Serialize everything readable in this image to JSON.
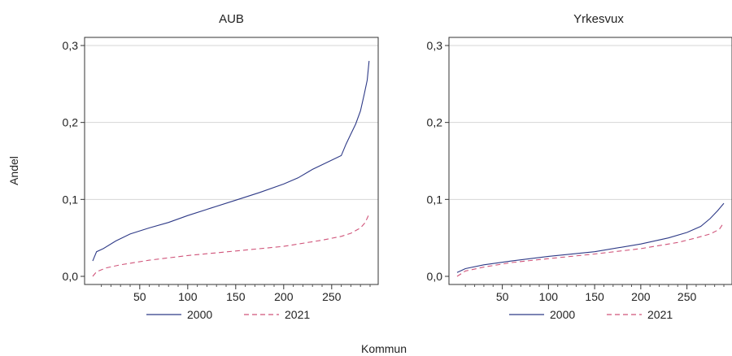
{
  "figure": {
    "ylabel": "Andel",
    "xlabel": "Kommun"
  },
  "chart_data": [
    {
      "type": "line",
      "title": "AUB",
      "ylim": [
        0,
        0.3
      ],
      "xlim": [
        1,
        290
      ],
      "xticks": [
        50,
        100,
        150,
        200,
        250
      ],
      "xtick_labels": [
        "50",
        "100",
        "150",
        "200",
        "250"
      ],
      "yticks": [
        0,
        0.1,
        0.2,
        0.3
      ],
      "ytick_labels": [
        "0,0",
        "0,1",
        "0,2",
        "0,3"
      ],
      "grid": true,
      "legend": "bottom",
      "series": [
        {
          "name": "2000",
          "color": "#2e3a87",
          "dash": "solid",
          "x": [
            1,
            5,
            12,
            25,
            40,
            60,
            80,
            100,
            125,
            150,
            175,
            200,
            215,
            230,
            245,
            260,
            265,
            270,
            275,
            280,
            284,
            287,
            289
          ],
          "y": [
            0.02,
            0.032,
            0.036,
            0.046,
            0.055,
            0.063,
            0.07,
            0.079,
            0.089,
            0.099,
            0.109,
            0.12,
            0.128,
            0.139,
            0.148,
            0.157,
            0.172,
            0.185,
            0.198,
            0.215,
            0.237,
            0.255,
            0.28
          ]
        },
        {
          "name": "2021",
          "color": "#d0547a",
          "dash": "dashed",
          "x": [
            1,
            5,
            15,
            30,
            60,
            100,
            150,
            200,
            240,
            260,
            270,
            280,
            285,
            289
          ],
          "y": [
            0.0,
            0.006,
            0.011,
            0.015,
            0.021,
            0.027,
            0.033,
            0.039,
            0.047,
            0.052,
            0.056,
            0.063,
            0.07,
            0.081
          ]
        }
      ]
    },
    {
      "type": "line",
      "title": "Yrkesvux",
      "ylim": [
        0,
        0.3
      ],
      "xlim": [
        1,
        290
      ],
      "xticks": [
        50,
        100,
        150,
        200,
        250
      ],
      "xtick_labels": [
        "50",
        "100",
        "150",
        "200",
        "250"
      ],
      "yticks": [
        0,
        0.1,
        0.2,
        0.3
      ],
      "ytick_labels": [
        "0,0",
        "0,1",
        "0,2",
        "0,3"
      ],
      "grid": true,
      "legend": "bottom",
      "series": [
        {
          "name": "2000",
          "color": "#2e3a87",
          "dash": "solid",
          "x": [
            1,
            10,
            30,
            60,
            100,
            150,
            200,
            230,
            250,
            265,
            275,
            283,
            290
          ],
          "y": [
            0.005,
            0.01,
            0.015,
            0.02,
            0.026,
            0.032,
            0.042,
            0.05,
            0.057,
            0.065,
            0.075,
            0.085,
            0.095
          ]
        },
        {
          "name": "2021",
          "color": "#d0547a",
          "dash": "dashed",
          "x": [
            1,
            10,
            30,
            60,
            100,
            150,
            200,
            240,
            260,
            275,
            285,
            290
          ],
          "y": [
            0.0,
            0.007,
            0.012,
            0.018,
            0.023,
            0.029,
            0.036,
            0.044,
            0.05,
            0.055,
            0.061,
            0.07
          ]
        }
      ]
    }
  ]
}
